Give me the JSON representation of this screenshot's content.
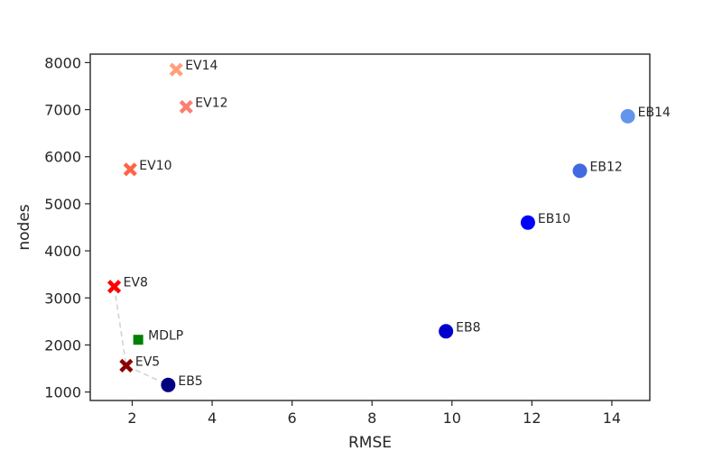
{
  "chart_data": {
    "type": "scatter",
    "xlabel": "RMSE",
    "ylabel": "nodes",
    "xlim": [
      0.95,
      14.95
    ],
    "ylim": [
      820,
      8180
    ],
    "xticks": [
      2,
      4,
      6,
      8,
      10,
      12,
      14
    ],
    "yticks": [
      1000,
      2000,
      3000,
      4000,
      5000,
      6000,
      7000,
      8000
    ],
    "grid": false,
    "points": [
      {
        "label": "EV14",
        "x": 3.1,
        "y": 7850,
        "marker": "x",
        "color": "#ffa07a"
      },
      {
        "label": "EV12",
        "x": 3.35,
        "y": 7060,
        "marker": "x",
        "color": "#fa8072"
      },
      {
        "label": "EV10",
        "x": 1.95,
        "y": 5730,
        "marker": "x",
        "color": "#ff6347"
      },
      {
        "label": "EV8",
        "x": 1.55,
        "y": 3240,
        "marker": "x",
        "color": "#ff0000"
      },
      {
        "label": "EV5",
        "x": 1.85,
        "y": 1560,
        "marker": "x",
        "color": "#8b0000"
      },
      {
        "label": "MDLP",
        "x": 2.15,
        "y": 2110,
        "marker": "square",
        "color": "#008000"
      },
      {
        "label": "EB5",
        "x": 2.9,
        "y": 1150,
        "marker": "circle",
        "color": "#000080"
      },
      {
        "label": "EB8",
        "x": 9.85,
        "y": 2290,
        "marker": "circle",
        "color": "#0000cd"
      },
      {
        "label": "EB10",
        "x": 11.9,
        "y": 4600,
        "marker": "circle",
        "color": "#0000ff"
      },
      {
        "label": "EB12",
        "x": 13.2,
        "y": 5700,
        "marker": "circle",
        "color": "#4169e1"
      },
      {
        "label": "EB14",
        "x": 14.4,
        "y": 6860,
        "marker": "circle",
        "color": "#6495ed"
      }
    ],
    "pareto_line": {
      "points": [
        [
          1.55,
          3240
        ],
        [
          1.85,
          1560
        ],
        [
          2.9,
          1150
        ]
      ],
      "color": "#d3d3d3",
      "style": "dashed"
    }
  }
}
